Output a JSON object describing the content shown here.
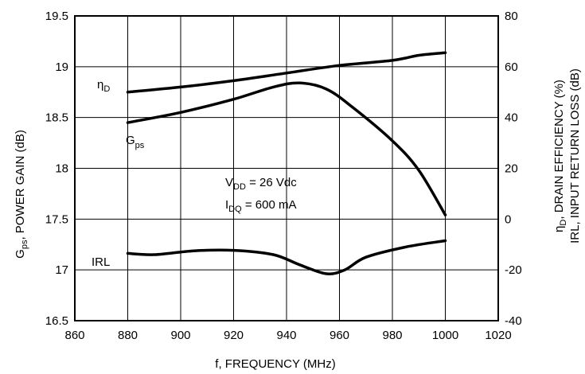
{
  "chart_data": {
    "type": "line",
    "x": [
      880,
      900,
      920,
      940,
      950,
      960,
      980,
      1000
    ],
    "xlabel": "f, FREQUENCY (MHz)",
    "xlim": [
      860,
      1020
    ],
    "xticks": [
      "860",
      "880",
      "900",
      "920",
      "940",
      "960",
      "980",
      "1000",
      "1020"
    ],
    "y_left": {
      "label": {
        "main": "G",
        "sub": "ps",
        "rest": ", POWER GAIN (dB)"
      },
      "lim": [
        16.5,
        19.5
      ],
      "ticks": [
        "16.5",
        "17",
        "17.5",
        "18",
        "18.5",
        "19",
        "19.5"
      ]
    },
    "y_right": {
      "label_line1": {
        "main": "η",
        "sub": "D",
        "rest": ", DRAIN EFFICIENCY (%)"
      },
      "label_line2": "IRL,  INPUT RETURN LOSS (dB)",
      "lim": [
        -40,
        80
      ],
      "ticks": [
        "-40",
        "-20",
        "0",
        "20",
        "40",
        "60",
        "80"
      ]
    },
    "grid": true,
    "series": [
      {
        "name": {
          "main": "η",
          "sub": "D"
        },
        "axis": "right",
        "points": [
          [
            880,
            50
          ],
          [
            900,
            52
          ],
          [
            920,
            54.5
          ],
          [
            940,
            57.5
          ],
          [
            960,
            60.5
          ],
          [
            980,
            62.5
          ],
          [
            990,
            64.5
          ],
          [
            1000,
            65.5
          ]
        ]
      },
      {
        "name": {
          "main": "G",
          "sub": "ps"
        },
        "axis": "left",
        "points": [
          [
            880,
            18.45
          ],
          [
            900,
            18.55
          ],
          [
            920,
            18.68
          ],
          [
            935,
            18.8
          ],
          [
            945,
            18.84
          ],
          [
            955,
            18.78
          ],
          [
            965,
            18.6
          ],
          [
            980,
            18.27
          ],
          [
            990,
            17.98
          ],
          [
            1000,
            17.54
          ]
        ]
      },
      {
        "name": {
          "main": "IRL",
          "sub": ""
        },
        "axis": "right",
        "points": [
          [
            880,
            -13.5
          ],
          [
            890,
            -14
          ],
          [
            905,
            -12.5
          ],
          [
            920,
            -12.3
          ],
          [
            935,
            -14
          ],
          [
            945,
            -18
          ],
          [
            955,
            -21.5
          ],
          [
            962,
            -20
          ],
          [
            970,
            -15
          ],
          [
            985,
            -11
          ],
          [
            1000,
            -8.5
          ]
        ]
      }
    ],
    "annotation": {
      "vdd": {
        "main": "V",
        "sub": "DD",
        "rest": " = 26 Vdc"
      },
      "idq": {
        "main": "I",
        "sub": "DQ",
        "rest": " = 600 mA"
      }
    }
  }
}
